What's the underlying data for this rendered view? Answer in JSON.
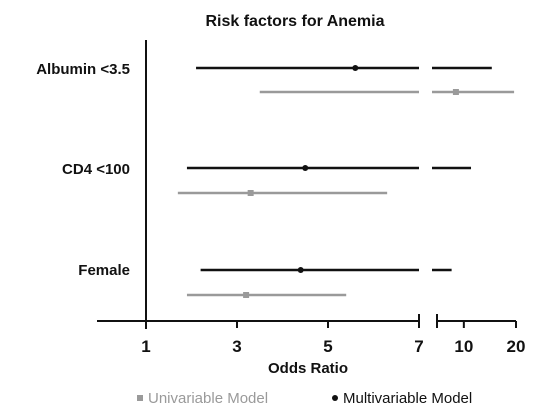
{
  "chart_data": {
    "type": "forest",
    "title": "Risk factors for Anemia",
    "xlabel": "Odds Ratio",
    "categories": [
      "Albumin <3.5",
      "CD4 <100",
      "Female"
    ],
    "axis_segments": [
      {
        "range": [
          1,
          7
        ],
        "ticks": [
          "1",
          "3",
          "5",
          "7"
        ]
      },
      {
        "range": [
          7,
          20
        ],
        "ticks": [
          "10",
          "20"
        ]
      }
    ],
    "series": [
      {
        "name": "Multivariable Model",
        "color": "#111111",
        "points": [
          {
            "category": "Albumin <3.5",
            "or": 5.6,
            "low": 2.1,
            "high": 14.5
          },
          {
            "category": "CD4 <100",
            "or": 4.5,
            "low": 1.9,
            "high": 11.0
          },
          {
            "category": "Female",
            "or": 4.4,
            "low": 2.2,
            "high": 8.5
          }
        ]
      },
      {
        "name": "Univariable Model",
        "color": "#9a9a9a",
        "points": [
          {
            "category": "Albumin <3.5",
            "or": 9.0,
            "low": 3.5,
            "high": 19.5
          },
          {
            "category": "CD4 <100",
            "or": 3.3,
            "low": 1.7,
            "high": 6.3
          },
          {
            "category": "Female",
            "or": 3.2,
            "low": 1.9,
            "high": 5.4
          }
        ]
      }
    ],
    "legend": {
      "position": "bottom",
      "items": [
        {
          "label": "Univariable Model",
          "color": "#9a9a9a",
          "marker": "square"
        },
        {
          "label": "Multivariable Model",
          "color": "#111111",
          "marker": "dot"
        }
      ]
    }
  }
}
